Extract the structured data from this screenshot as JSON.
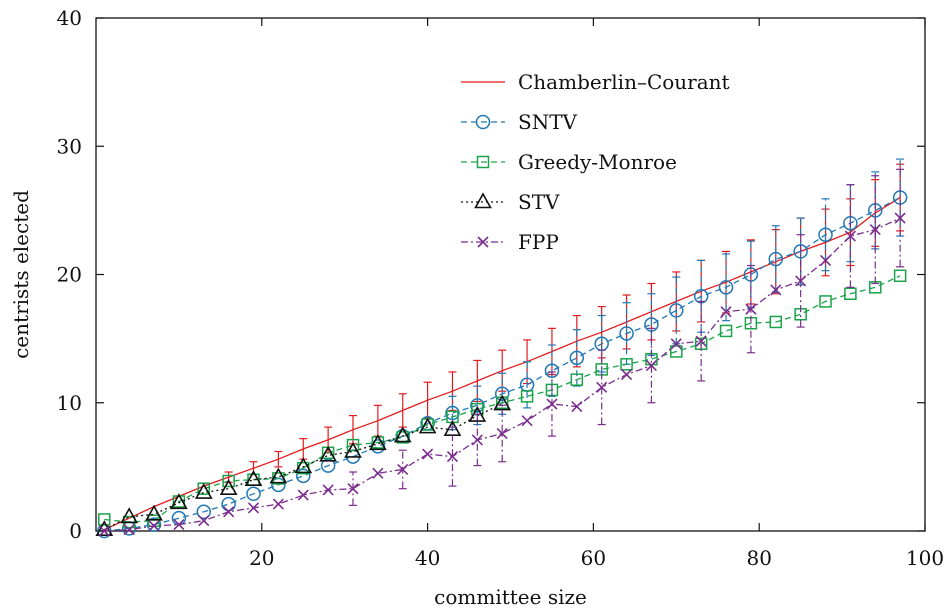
{
  "chart_data": {
    "type": "line",
    "title": "",
    "xlabel": "committee size",
    "ylabel": "centrists elected",
    "xlim": [
      0,
      100
    ],
    "ylim": [
      0,
      40
    ],
    "xticks": [
      20,
      40,
      60,
      80,
      100
    ],
    "yticks": [
      0,
      10,
      20,
      30,
      40
    ],
    "grid": false,
    "legend_position": "top-right",
    "series": [
      {
        "name": "Chamberlin–Courant",
        "color": "#e31a1c",
        "dash": "",
        "marker": "none",
        "x": [
          1,
          4,
          7,
          10,
          13,
          16,
          19,
          22,
          25,
          28,
          31,
          34,
          37,
          40,
          43,
          46,
          49,
          52,
          55,
          58,
          61,
          64,
          67,
          70,
          73,
          76,
          79,
          82,
          85,
          88,
          91,
          94,
          97
        ],
        "y": [
          0.1,
          1.0,
          1.9,
          2.7,
          3.5,
          4.2,
          4.9,
          5.6,
          6.4,
          7.1,
          7.9,
          8.6,
          9.4,
          10.2,
          10.9,
          11.7,
          12.5,
          13.2,
          14.0,
          14.8,
          15.5,
          16.3,
          17.1,
          17.9,
          18.7,
          19.4,
          20.2,
          21.0,
          21.8,
          22.5,
          23.3,
          24.8,
          26.0
        ],
        "err": [
          0,
          0,
          0,
          0,
          0,
          0.4,
          0.5,
          0.6,
          0.8,
          1.0,
          1.1,
          1.2,
          1.3,
          1.4,
          1.5,
          1.6,
          1.6,
          1.7,
          1.8,
          2.0,
          2.0,
          2.1,
          2.2,
          2.3,
          2.4,
          2.4,
          2.5,
          2.5,
          2.6,
          2.6,
          2.6,
          2.6,
          2.6
        ]
      },
      {
        "name": "SNTV",
        "color": "#1f78b4",
        "dash": "6,4",
        "marker": "circle",
        "x": [
          1,
          4,
          7,
          10,
          13,
          16,
          19,
          22,
          25,
          28,
          31,
          34,
          37,
          40,
          43,
          46,
          49,
          52,
          55,
          58,
          61,
          64,
          67,
          70,
          73,
          76,
          79,
          82,
          85,
          88,
          91,
          94,
          97
        ],
        "y": [
          0.0,
          0.2,
          0.5,
          1.0,
          1.5,
          2.1,
          2.9,
          3.6,
          4.3,
          5.1,
          5.8,
          6.6,
          7.4,
          8.4,
          9.2,
          9.8,
          10.7,
          11.4,
          12.5,
          13.5,
          14.6,
          15.4,
          16.1,
          17.2,
          18.3,
          19.0,
          20.0,
          21.2,
          21.8,
          23.1,
          24.0,
          25.0,
          26.0
        ],
        "err": [
          0,
          0,
          0,
          0,
          0,
          0,
          0,
          0,
          0,
          0,
          0,
          0,
          0,
          0,
          1.3,
          1.5,
          1.6,
          1.8,
          2.0,
          2.2,
          2.2,
          2.4,
          2.4,
          2.6,
          2.8,
          2.6,
          2.6,
          2.6,
          2.6,
          2.8,
          3.0,
          3.0,
          3.0
        ]
      },
      {
        "name": "Greedy-Monroe",
        "color": "#1aa34a",
        "dash": "6,4",
        "marker": "square",
        "x": [
          1,
          4,
          7,
          10,
          13,
          16,
          19,
          22,
          25,
          28,
          31,
          34,
          37,
          40,
          43,
          46,
          49,
          52,
          55,
          58,
          61,
          64,
          67,
          70,
          73,
          76,
          79,
          82,
          85,
          88,
          91,
          94,
          97
        ],
        "y": [
          0.9,
          0.7,
          0.8,
          2.3,
          3.3,
          3.9,
          4.0,
          4.1,
          4.9,
          6.1,
          6.7,
          6.9,
          7.3,
          8.3,
          8.9,
          9.5,
          10.0,
          10.5,
          11.0,
          11.8,
          12.6,
          13.0,
          13.4,
          14.0,
          14.6,
          15.6,
          16.2,
          16.3,
          16.9,
          17.9,
          18.5,
          19.0,
          19.9
        ],
        "err": [
          0,
          0,
          0,
          0,
          0,
          0,
          0,
          0,
          0,
          0,
          0,
          0,
          0,
          0,
          0,
          0,
          0,
          0,
          0,
          0,
          0,
          0,
          0,
          0,
          0,
          0,
          0,
          0,
          0,
          0,
          0,
          0,
          0
        ]
      },
      {
        "name": "STV",
        "color": "#111111",
        "dash": "2,3",
        "marker": "triangle",
        "x": [
          1,
          4,
          7,
          10,
          13,
          16,
          19,
          22,
          25,
          28,
          31,
          34,
          37,
          40,
          43,
          46,
          49
        ],
        "y": [
          0.1,
          1.1,
          1.3,
          2.2,
          3.0,
          3.3,
          4.0,
          4.2,
          5.0,
          5.9,
          6.2,
          6.8,
          7.4,
          8.1,
          7.9,
          9.0,
          9.9
        ],
        "err": [
          0,
          0,
          0,
          0,
          0,
          0,
          0,
          0,
          0,
          0,
          0,
          0,
          0,
          0,
          0,
          0,
          0
        ]
      },
      {
        "name": "FPP",
        "color": "#7b2d8e",
        "dash": "7,3,2,3",
        "marker": "x",
        "x": [
          1,
          4,
          7,
          10,
          13,
          16,
          19,
          22,
          25,
          28,
          31,
          34,
          37,
          40,
          43,
          46,
          49,
          52,
          55,
          58,
          61,
          64,
          67,
          70,
          73,
          76,
          79,
          82,
          85,
          88,
          91,
          94,
          97
        ],
        "y": [
          0.0,
          0.1,
          0.4,
          0.5,
          0.8,
          1.5,
          1.8,
          2.1,
          2.8,
          3.2,
          3.3,
          4.5,
          4.8,
          6.0,
          5.8,
          7.1,
          7.6,
          8.6,
          9.9,
          9.7,
          11.2,
          12.2,
          12.9,
          14.6,
          14.8,
          17.1,
          17.3,
          18.8,
          19.5,
          21.1,
          23.0,
          23.5,
          24.4
        ],
        "err": [
          0,
          0,
          0,
          0,
          0,
          0,
          0,
          0,
          0,
          0,
          1.3,
          0,
          1.5,
          0,
          2.3,
          2.0,
          2.2,
          0,
          2.5,
          0,
          2.9,
          0,
          2.9,
          0,
          3.1,
          0,
          3.4,
          0,
          3.6,
          0,
          4.0,
          4.2,
          3.8
        ]
      }
    ]
  }
}
